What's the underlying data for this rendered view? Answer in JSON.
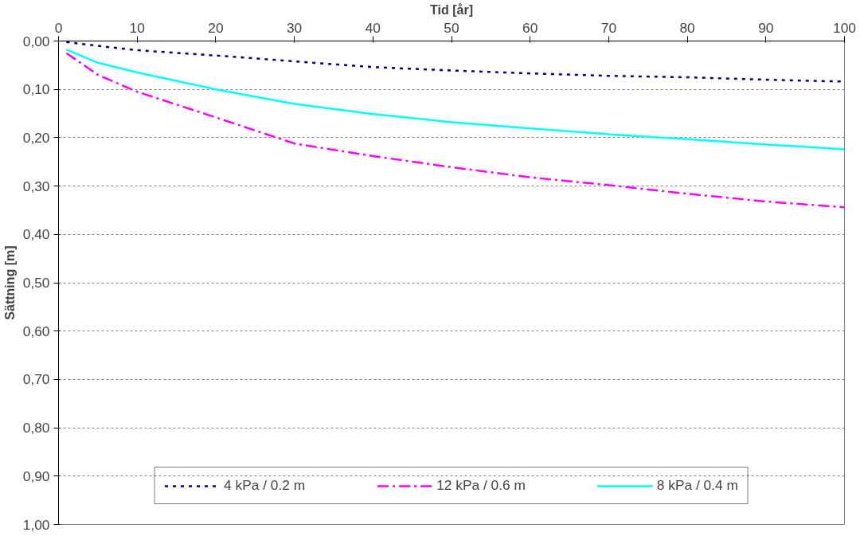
{
  "chart_data": {
    "type": "line",
    "xlabel": "Tid [år]",
    "ylabel": "Sättning [m]",
    "xlim": [
      0,
      100
    ],
    "xticks": [
      0,
      10,
      20,
      30,
      40,
      50,
      60,
      70,
      80,
      90,
      100
    ],
    "ylim": [
      1.0,
      0.0
    ],
    "yticks": [
      {
        "value": 0,
        "label": "0,00"
      },
      {
        "value": 0.1,
        "label": "0,10"
      },
      {
        "value": 0.2,
        "label": "0,20"
      },
      {
        "value": 0.3,
        "label": "0,30"
      },
      {
        "value": 0.4,
        "label": "0,40"
      },
      {
        "value": 0.5,
        "label": "0,50"
      },
      {
        "value": 0.6,
        "label": "0,60"
      },
      {
        "value": 0.7,
        "label": "0,70"
      },
      {
        "value": 0.8,
        "label": "0,80"
      },
      {
        "value": 0.9,
        "label": "0,90"
      },
      {
        "value": 1.0,
        "label": "1,00"
      }
    ],
    "grid": "y",
    "legend": "bottom",
    "marker": "none",
    "x": [
      1,
      5,
      10,
      20,
      30,
      40,
      50,
      60,
      70,
      80,
      90,
      100
    ],
    "series": [
      {
        "name": "4 kPa / 0.2 m",
        "color": "#000080",
        "line_style": "dotted",
        "values": [
          0.002,
          0.01,
          0.019,
          0.03,
          0.042,
          0.054,
          0.061,
          0.067,
          0.072,
          0.075,
          0.08,
          0.084
        ]
      },
      {
        "name": "12 kPa / 0.6 m",
        "color": "#ff00ff",
        "line_style": "dashdot",
        "values": [
          0.025,
          0.07,
          0.105,
          0.158,
          0.212,
          0.238,
          0.261,
          0.282,
          0.298,
          0.316,
          0.332,
          0.344
        ]
      },
      {
        "name": "8 kPa / 0.4 m",
        "color": "#00ffff",
        "line_style": "solid",
        "values": [
          0.018,
          0.045,
          0.065,
          0.1,
          0.13,
          0.151,
          0.168,
          0.181,
          0.193,
          0.203,
          0.214,
          0.224
        ]
      }
    ]
  }
}
